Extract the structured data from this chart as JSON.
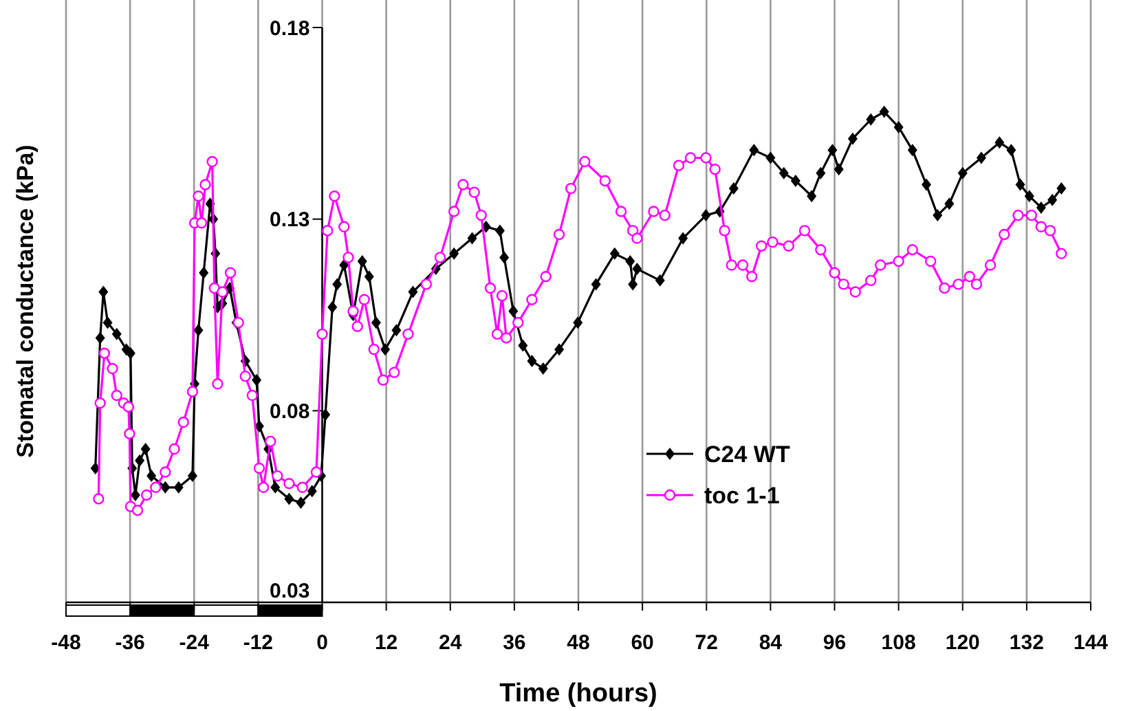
{
  "chart_data": {
    "type": "line",
    "xlabel": "Time  (hours)",
    "ylabel": "Stomatal conductance (kPa)",
    "xlim": [
      -48,
      144
    ],
    "xticks": [
      -48,
      -36,
      -24,
      -12,
      0,
      12,
      24,
      36,
      48,
      60,
      72,
      84,
      96,
      108,
      120,
      132,
      144
    ],
    "ylim": [
      0.03,
      0.18
    ],
    "yticks": [
      0.03,
      0.08,
      0.13,
      0.18
    ],
    "grid": "x",
    "legend": "bottom",
    "line_style": "solid",
    "series": [
      {
        "name": "C24 WT",
        "color": "#000000",
        "marker": "diamond",
        "x": [
          -42.5,
          -41.6,
          -41.0,
          -40.2,
          -38.5,
          -36.7,
          -35.9,
          -35.6,
          -35.0,
          -34.2,
          -33.1,
          -32.0,
          -29.4,
          -26.9,
          -24.3,
          -23.9,
          -23.2,
          -22.2,
          -21.0,
          -20.4,
          -20.0,
          -19.6,
          -18.7,
          -17.3,
          -16.1,
          -14.4,
          -12.3,
          -11.8,
          -10.1,
          -8.8,
          -6.2,
          -4.0,
          -1.9,
          -0.2,
          0.6,
          1.9,
          2.8,
          4.1,
          5.8,
          7.5,
          8.8,
          10.1,
          11.8,
          13.9,
          17.0,
          21.3,
          24.7,
          28.1,
          30.7,
          33.3,
          34.1,
          35.8,
          37.6,
          39.3,
          41.4,
          44.4,
          47.9,
          51.3,
          54.8,
          57.7,
          58.2,
          59.0,
          63.3,
          67.6,
          71.9,
          74.5,
          77.1,
          80.9,
          84.0,
          86.5,
          88.7,
          91.7,
          93.4,
          95.6,
          96.8,
          99.4,
          102.8,
          105.3,
          108.0,
          110.6,
          113.2,
          115.3,
          117.5,
          120.0,
          123.5,
          126.9,
          129.1,
          130.8,
          132.5,
          134.7,
          136.8,
          138.5
        ],
        "values": [
          0.065,
          0.099,
          0.111,
          0.103,
          0.1,
          0.096,
          0.095,
          0.065,
          0.058,
          0.067,
          0.07,
          0.063,
          0.06,
          0.06,
          0.063,
          0.087,
          0.101,
          0.116,
          0.134,
          0.13,
          0.121,
          0.107,
          0.108,
          0.112,
          0.103,
          0.093,
          0.088,
          0.076,
          0.07,
          0.06,
          0.057,
          0.056,
          0.059,
          0.063,
          0.079,
          0.107,
          0.113,
          0.118,
          0.105,
          0.119,
          0.115,
          0.103,
          0.096,
          0.101,
          0.111,
          0.117,
          0.121,
          0.125,
          0.128,
          0.127,
          0.12,
          0.106,
          0.097,
          0.093,
          0.091,
          0.096,
          0.103,
          0.113,
          0.121,
          0.119,
          0.113,
          0.117,
          0.114,
          0.125,
          0.131,
          0.132,
          0.138,
          0.148,
          0.146,
          0.142,
          0.14,
          0.136,
          0.142,
          0.148,
          0.143,
          0.151,
          0.156,
          0.158,
          0.154,
          0.148,
          0.139,
          0.131,
          0.134,
          0.142,
          0.146,
          0.15,
          0.148,
          0.139,
          0.136,
          0.133,
          0.135,
          0.138
        ]
      },
      {
        "name": "toc 1-1",
        "color": "#ff00ff",
        "marker": "circle",
        "x": [
          -41.9,
          -41.6,
          -40.8,
          -39.3,
          -38.5,
          -37.2,
          -36.3,
          -36.1,
          -35.9,
          -34.6,
          -32.9,
          -31.2,
          -29.4,
          -27.7,
          -26.0,
          -24.3,
          -23.9,
          -23.2,
          -22.6,
          -21.9,
          -20.6,
          -20.2,
          -19.6,
          -18.7,
          -17.2,
          -15.7,
          -14.4,
          -13.1,
          -11.8,
          -11.0,
          -9.7,
          -8.4,
          -6.2,
          -3.7,
          -1.1,
          0.0,
          1.0,
          2.3,
          4.1,
          4.9,
          5.8,
          6.6,
          7.9,
          9.7,
          11.4,
          13.5,
          16.1,
          19.5,
          22.1,
          24.7,
          26.4,
          28.5,
          29.8,
          31.5,
          32.8,
          33.7,
          34.5,
          36.7,
          39.3,
          41.9,
          44.4,
          46.6,
          49.2,
          53.0,
          56.0,
          58.2,
          59.0,
          62.1,
          64.2,
          66.8,
          69.0,
          71.9,
          73.6,
          75.4,
          76.7,
          78.8,
          80.5,
          82.3,
          84.4,
          87.4,
          90.4,
          93.4,
          96.0,
          97.7,
          99.9,
          102.8,
          104.6,
          108.0,
          110.6,
          114.0,
          116.6,
          119.2,
          121.3,
          122.6,
          125.2,
          127.8,
          130.4,
          132.9,
          134.7,
          136.4,
          138.5
        ],
        "values": [
          0.057,
          0.082,
          0.095,
          0.091,
          0.084,
          0.082,
          0.081,
          0.074,
          0.055,
          0.054,
          0.058,
          0.06,
          0.064,
          0.07,
          0.077,
          0.085,
          0.129,
          0.136,
          0.129,
          0.139,
          0.145,
          0.112,
          0.087,
          0.111,
          0.116,
          0.103,
          0.089,
          0.084,
          0.065,
          0.06,
          0.072,
          0.063,
          0.061,
          0.06,
          0.064,
          0.1,
          0.127,
          0.136,
          0.128,
          0.12,
          0.106,
          0.102,
          0.109,
          0.096,
          0.088,
          0.09,
          0.1,
          0.113,
          0.12,
          0.132,
          0.139,
          0.137,
          0.131,
          0.112,
          0.1,
          0.11,
          0.099,
          0.103,
          0.109,
          0.115,
          0.126,
          0.138,
          0.145,
          0.14,
          0.132,
          0.127,
          0.125,
          0.132,
          0.131,
          0.144,
          0.146,
          0.146,
          0.143,
          0.127,
          0.118,
          0.118,
          0.115,
          0.123,
          0.124,
          0.123,
          0.127,
          0.122,
          0.116,
          0.113,
          0.111,
          0.114,
          0.118,
          0.119,
          0.122,
          0.119,
          0.112,
          0.113,
          0.115,
          0.113,
          0.118,
          0.126,
          0.131,
          0.131,
          0.128,
          0.127,
          0.121
        ]
      }
    ]
  }
}
